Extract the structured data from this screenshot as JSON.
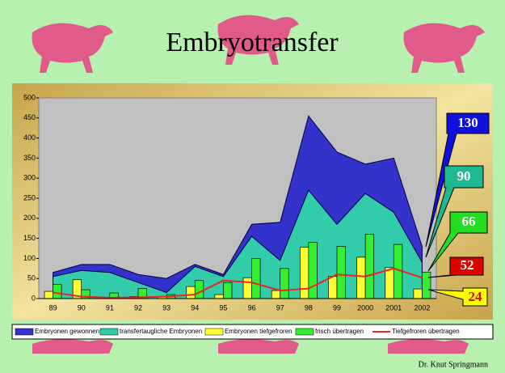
{
  "chart_data": {
    "type": "combo",
    "title": "Embryotransfer",
    "footer": "Dr. Knut Springmann",
    "categories": [
      "89",
      "90",
      "91",
      "92",
      "93",
      "94",
      "95",
      "96",
      "97",
      "98",
      "99",
      "2000",
      "2001",
      "2002"
    ],
    "ylim": [
      0,
      500
    ],
    "yticks": [
      0,
      50,
      100,
      150,
      200,
      250,
      300,
      350,
      400,
      450,
      500
    ],
    "series": [
      {
        "name": "Embryonen gewonnen",
        "type": "area",
        "color": "#3333cc",
        "values": [
          65,
          85,
          85,
          60,
          50,
          85,
          60,
          185,
          190,
          455,
          365,
          335,
          350,
          130
        ]
      },
      {
        "name": "transfertaugliche Embryonen",
        "type": "area",
        "color": "#33ccaa",
        "values": [
          55,
          70,
          65,
          40,
          15,
          80,
          55,
          155,
          95,
          270,
          185,
          262,
          215,
          90
        ]
      },
      {
        "name": "Embryonen tiefgefroren",
        "type": "bar",
        "color": "#ffff33",
        "values": [
          18,
          47,
          0,
          5,
          5,
          30,
          10,
          52,
          20,
          128,
          55,
          103,
          77,
          24
        ]
      },
      {
        "name": "frisch übertragen",
        "type": "bar",
        "color": "#33ee33",
        "values": [
          35,
          22,
          14,
          25,
          10,
          45,
          40,
          100,
          75,
          140,
          130,
          160,
          135,
          66
        ]
      },
      {
        "name": "Tiefgefroren übertragen",
        "type": "line",
        "color": "#ee2222",
        "values": [
          15,
          5,
          2,
          3,
          5,
          10,
          45,
          40,
          20,
          25,
          60,
          55,
          75,
          52
        ]
      }
    ]
  }
}
